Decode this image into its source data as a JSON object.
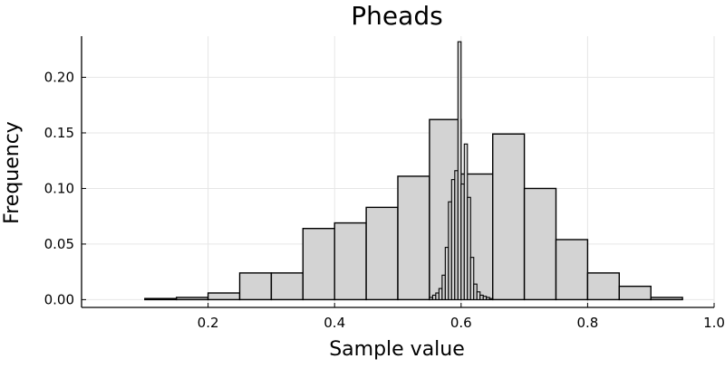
{
  "chart_data": {
    "type": "bar",
    "title": "Pheads",
    "xlabel": "Sample value",
    "ylabel": "Frequency",
    "xlim": [
      0.0,
      1.0
    ],
    "ylim": [
      -0.007,
      0.237
    ],
    "xticks": [
      0.2,
      0.4,
      0.6,
      0.8,
      1.0
    ],
    "xtick_labels": [
      "0.2",
      "0.4",
      "0.6",
      "0.8",
      "1.0"
    ],
    "yticks": [
      0.0,
      0.05,
      0.1,
      0.15,
      0.2
    ],
    "ytick_labels": [
      "0.00",
      "0.05",
      "0.10",
      "0.15",
      "0.20"
    ],
    "grid": true,
    "legend": "none",
    "bar_color": "#d3d3d3",
    "edge_color": "#000000",
    "series": [
      {
        "bin_edges": [
          0.1,
          0.15,
          0.2,
          0.25,
          0.3,
          0.35,
          0.4,
          0.45,
          0.5,
          0.55,
          0.6,
          0.65,
          0.7,
          0.75,
          0.8,
          0.85,
          0.9,
          0.95
        ],
        "values": [
          0.001,
          0.002,
          0.006,
          0.024,
          0.024,
          0.064,
          0.069,
          0.083,
          0.111,
          0.162,
          0.113,
          0.149,
          0.1,
          0.054,
          0.024,
          0.012,
          0.002
        ]
      },
      {
        "bin_edges": [
          0.55,
          0.555,
          0.56,
          0.565,
          0.57,
          0.575,
          0.58,
          0.585,
          0.59,
          0.595,
          0.6,
          0.605,
          0.61,
          0.615,
          0.62,
          0.625,
          0.63,
          0.635,
          0.64,
          0.645,
          0.65
        ],
        "values": [
          0.002,
          0.004,
          0.006,
          0.01,
          0.022,
          0.047,
          0.088,
          0.108,
          0.116,
          0.232,
          0.104,
          0.14,
          0.092,
          0.038,
          0.014,
          0.007,
          0.004,
          0.003,
          0.002,
          0.001
        ]
      }
    ]
  }
}
